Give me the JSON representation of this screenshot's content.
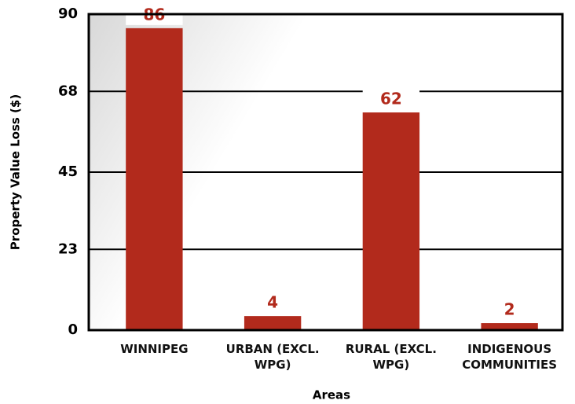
{
  "chart_data": {
    "type": "bar",
    "categories": [
      "WINNIPEG",
      "URBAN (EXCL. WPG)",
      "RURAL (EXCL. WPG)",
      "INDIGENOUS COMMUNITIES"
    ],
    "values": [
      86,
      4,
      62,
      2
    ],
    "color": "#b22a1c",
    "ylim": [
      0,
      90
    ],
    "yticks": [
      0,
      23,
      45,
      68,
      90
    ],
    "grid": true,
    "ylabel": "Property Value Loss ($)",
    "xlabel": "Areas"
  }
}
